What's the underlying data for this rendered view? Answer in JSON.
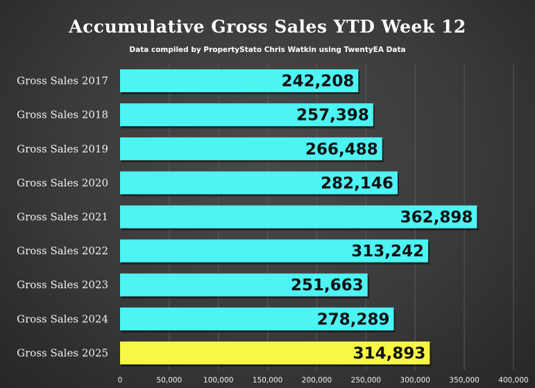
{
  "chart_data": {
    "type": "bar",
    "orientation": "horizontal",
    "title": "Accumulative Gross Sales YTD Week 12",
    "subtitle": "Data compiled by PropertyStato Chris Watkin using TwentyEA Data",
    "categories": [
      "Gross Sales 2017",
      "Gross Sales 2018",
      "Gross Sales 2019",
      "Gross Sales 2020",
      "Gross Sales 2021",
      "Gross Sales 2022",
      "Gross Sales 2023",
      "Gross Sales 2024",
      "Gross Sales 2025"
    ],
    "values": [
      242208,
      257398,
      266488,
      282146,
      362898,
      313242,
      251663,
      278289,
      314893
    ],
    "data_labels": [
      "242,208",
      "257,398",
      "266,488",
      "282,146",
      "362,898",
      "313,242",
      "251,663",
      "278,289",
      "314,893"
    ],
    "xlim": [
      0,
      400000
    ],
    "x_ticks": [
      0,
      50000,
      100000,
      150000,
      200000,
      250000,
      300000,
      350000,
      400000
    ],
    "x_tick_labels": [
      "0",
      "50,000",
      "100,000",
      "150,000",
      "200,000",
      "250,000",
      "300,000",
      "350,000",
      "400,000"
    ],
    "grid": true,
    "legend": "none",
    "colors": {
      "bar": "#4ef3f3",
      "highlight_bar": "#f7f745",
      "highlight_category": "Gross Sales 2025",
      "background": "#3c3c3c",
      "text": "#ffffff"
    }
  }
}
